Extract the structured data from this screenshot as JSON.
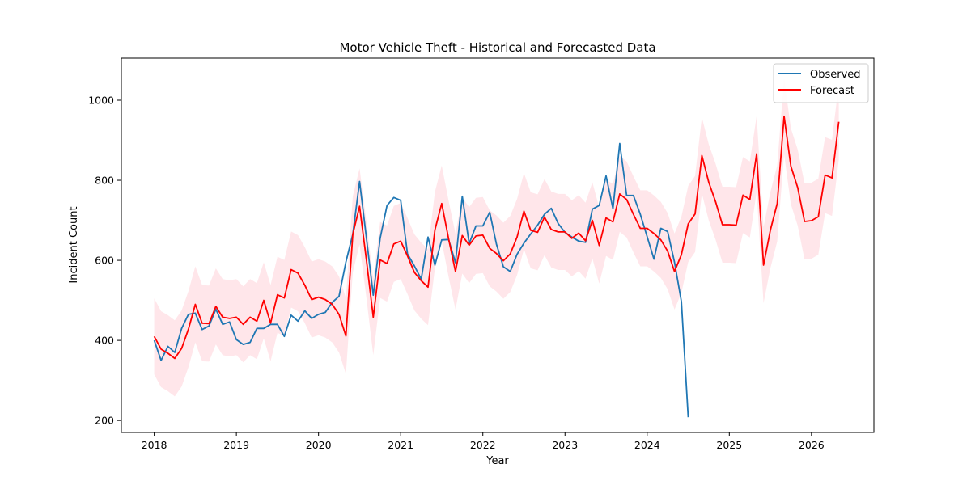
{
  "chart_data": {
    "type": "line",
    "title": "Motor Vehicle Theft - Historical and Forecasted Data",
    "xlabel": "Year",
    "ylabel": "Incident Count",
    "xlim": [
      2017.6,
      2026.76
    ],
    "ylim": [
      170,
      1105
    ],
    "xticks": [
      2018,
      2019,
      2020,
      2021,
      2022,
      2023,
      2024,
      2025,
      2026
    ],
    "yticks": [
      200,
      400,
      600,
      800,
      1000
    ],
    "grid": false,
    "legend_position": "top-right",
    "colors": {
      "observed": "#1f77b4",
      "forecast": "#ff0000",
      "band": "#ffc0cb"
    },
    "start_year": 2018,
    "step": 0.08333,
    "series": [
      {
        "name": "Observed",
        "values": [
          400,
          350,
          385,
          370,
          430,
          465,
          468,
          427,
          436,
          478,
          440,
          446,
          402,
          390,
          395,
          430,
          430,
          440,
          440,
          410,
          463,
          448,
          474,
          455,
          465,
          470,
          495,
          510,
          596,
          665,
          797,
          655,
          513,
          655,
          737,
          757,
          750,
          616,
          586,
          553,
          658,
          588,
          651,
          652,
          594,
          760,
          642,
          686,
          686,
          720,
          640,
          584,
          572,
          615,
          643,
          666,
          688,
          715,
          730,
          692,
          670,
          658,
          648,
          645,
          728,
          737,
          811,
          729,
          892,
          762,
          762,
          715,
          659,
          603,
          680,
          672,
          595,
          497,
          208
        ]
      },
      {
        "name": "Forecast",
        "values": [
          410,
          378,
          368,
          355,
          380,
          428,
          490,
          443,
          442,
          485,
          458,
          455,
          458,
          440,
          458,
          448,
          500,
          443,
          514,
          506,
          577,
          568,
          538,
          502,
          508,
          502,
          490,
          465,
          411,
          665,
          735,
          600,
          458,
          601,
          592,
          641,
          648,
          611,
          570,
          549,
          533,
          676,
          742,
          654,
          572,
          662,
          638,
          661,
          663,
          630,
          617,
          599,
          616,
          658,
          723,
          675,
          670,
          708,
          677,
          671,
          671,
          655,
          668,
          649,
          700,
          637,
          706,
          696,
          766,
          752,
          715,
          680,
          680,
          667,
          651,
          623,
          572,
          614,
          691,
          716,
          862,
          795,
          746,
          689,
          689,
          688,
          763,
          752,
          866,
          588,
          675,
          742,
          960,
          835,
          781,
          697,
          699,
          709,
          813,
          806,
          946
        ]
      }
    ],
    "forecast_band_halfwidth": 95
  }
}
